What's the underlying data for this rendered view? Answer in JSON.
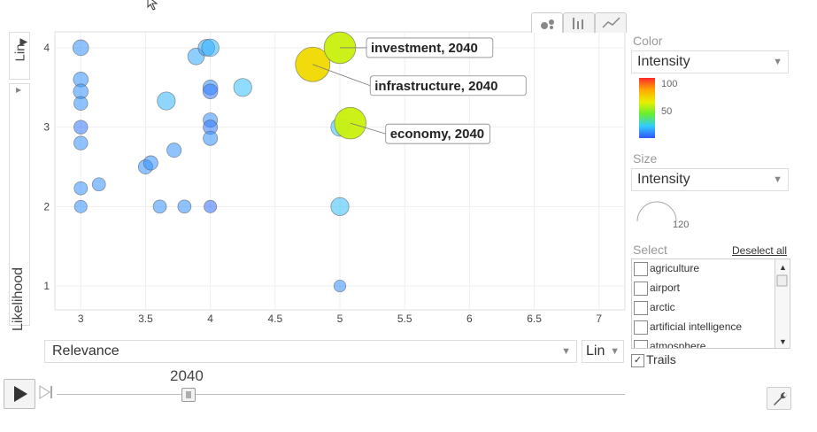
{
  "chart_data": {
    "type": "scatter",
    "xlabel": "Relevance",
    "ylabel": "Likelihood",
    "x_scale": "Lin",
    "y_scale": "Lin",
    "xlim": [
      2.8,
      7.2
    ],
    "ylim": [
      0.7,
      4.2
    ],
    "x_ticks": [
      3,
      3.5,
      4,
      4.5,
      5,
      5.5,
      6,
      6.5,
      7
    ],
    "y_ticks": [
      1,
      2,
      3,
      4
    ],
    "grid": true,
    "points": [
      {
        "x": 3,
        "y": 4.0,
        "intensity": 10,
        "size": 10
      },
      {
        "x": 3,
        "y": 3.6,
        "intensity": 10,
        "size": 8
      },
      {
        "x": 3,
        "y": 3.45,
        "intensity": 10,
        "size": 8
      },
      {
        "x": 3,
        "y": 3.3,
        "intensity": 10,
        "size": 6
      },
      {
        "x": 3,
        "y": 3.0,
        "intensity": 6,
        "size": 6
      },
      {
        "x": 3,
        "y": 2.8,
        "intensity": 10,
        "size": 6
      },
      {
        "x": 3,
        "y": 2.23,
        "intensity": 10,
        "size": 5
      },
      {
        "x": 3,
        "y": 2.0,
        "intensity": 10,
        "size": 4
      },
      {
        "x": 3.14,
        "y": 2.28,
        "intensity": 10,
        "size": 5
      },
      {
        "x": 3.5,
        "y": 2.5,
        "intensity": 10,
        "size": 7
      },
      {
        "x": 3.54,
        "y": 2.55,
        "intensity": 10,
        "size": 7
      },
      {
        "x": 3.61,
        "y": 2.0,
        "intensity": 10,
        "size": 5
      },
      {
        "x": 3.66,
        "y": 3.33,
        "intensity": 16,
        "size": 16
      },
      {
        "x": 3.72,
        "y": 2.71,
        "intensity": 10,
        "size": 7
      },
      {
        "x": 3.8,
        "y": 2.0,
        "intensity": 10,
        "size": 5
      },
      {
        "x": 3.89,
        "y": 3.89,
        "intensity": 14,
        "size": 12
      },
      {
        "x": 3.97,
        "y": 4.0,
        "intensity": 14,
        "size": 12
      },
      {
        "x": 4,
        "y": 4.0,
        "intensity": 16,
        "size": 14
      },
      {
        "x": 4,
        "y": 3.5,
        "intensity": 10,
        "size": 8
      },
      {
        "x": 4,
        "y": 3.45,
        "intensity": 6,
        "size": 8
      },
      {
        "x": 4,
        "y": 3.09,
        "intensity": 10,
        "size": 7
      },
      {
        "x": 4,
        "y": 3.0,
        "intensity": 6,
        "size": 7
      },
      {
        "x": 4,
        "y": 2.86,
        "intensity": 10,
        "size": 7
      },
      {
        "x": 4,
        "y": 2.0,
        "intensity": 4,
        "size": 4
      },
      {
        "x": 4.25,
        "y": 3.5,
        "intensity": 18,
        "size": 16
      },
      {
        "x": 5,
        "y": 2.0,
        "intensity": 18,
        "size": 16
      },
      {
        "x": 5,
        "y": 3.0,
        "intensity": 18,
        "size": 16
      },
      {
        "x": 5,
        "y": 1.0,
        "intensity": 10,
        "size": 3
      },
      {
        "x": 4.79,
        "y": 3.79,
        "intensity": 70,
        "size": 100,
        "label": "infrastructure, 2040"
      },
      {
        "x": 5.0,
        "y": 4.0,
        "intensity": 60,
        "size": 80,
        "label": "investment, 2040"
      },
      {
        "x": 5.08,
        "y": 3.05,
        "intensity": 60,
        "size": 80,
        "label": "economy, 2040"
      }
    ]
  },
  "controls": {
    "y_scale": "Lin",
    "y_variable": "Likelihood",
    "x_variable": "Relevance",
    "x_scale": "Lin"
  },
  "panel": {
    "color_label": "Color",
    "color_value": "Intensity",
    "color_legend_max": "100",
    "color_legend_mid": "50",
    "size_label": "Size",
    "size_value": "Intensity",
    "size_legend_value": "120",
    "select_label": "Select",
    "deselect_all": "Deselect all",
    "select_items": [
      "agriculture",
      "airport",
      "arctic",
      "artificial intelligence",
      "atmosphere"
    ],
    "trails_label": "Trails",
    "trails_checked": "✓"
  },
  "timeline": {
    "year": "2040",
    "progress": 0.23
  },
  "icons": {
    "play": "play-icon",
    "step": "step-forward-icon",
    "wrench": "wrench-icon",
    "cursor": "cursor-icon"
  }
}
